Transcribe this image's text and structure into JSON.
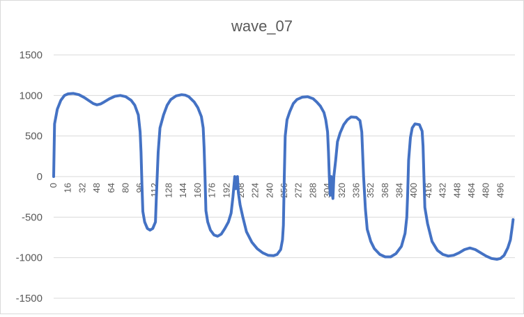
{
  "chart_data": {
    "type": "line",
    "title": "wave_07",
    "xlabel": "",
    "ylabel": "",
    "ylim": [
      -1500,
      1500
    ],
    "xlim": [
      0,
      512
    ],
    "yticks": [
      1500,
      1000,
      500,
      0,
      -500,
      -1000,
      -1500
    ],
    "xticks": [
      0,
      16,
      32,
      48,
      64,
      80,
      96,
      112,
      128,
      144,
      160,
      176,
      192,
      208,
      224,
      240,
      256,
      272,
      288,
      304,
      320,
      336,
      352,
      368,
      384,
      400,
      416,
      432,
      448,
      464,
      480,
      496
    ],
    "grid": "horizontal",
    "legend": "none",
    "series": [
      {
        "color": "#4472c4",
        "points": [
          [
            0,
            0
          ],
          [
            1,
            650
          ],
          [
            4,
            830
          ],
          [
            8,
            940
          ],
          [
            12,
            1000
          ],
          [
            16,
            1020
          ],
          [
            22,
            1025
          ],
          [
            28,
            1010
          ],
          [
            34,
            975
          ],
          [
            40,
            930
          ],
          [
            44,
            900
          ],
          [
            48,
            885
          ],
          [
            52,
            895
          ],
          [
            56,
            920
          ],
          [
            62,
            960
          ],
          [
            68,
            990
          ],
          [
            74,
            1000
          ],
          [
            80,
            985
          ],
          [
            86,
            940
          ],
          [
            90,
            880
          ],
          [
            94,
            760
          ],
          [
            96,
            550
          ],
          [
            97,
            300
          ],
          [
            98,
            -100
          ],
          [
            99,
            -430
          ],
          [
            101,
            -560
          ],
          [
            104,
            -640
          ],
          [
            107,
            -660
          ],
          [
            110,
            -640
          ],
          [
            113,
            -560
          ],
          [
            114,
            -250
          ],
          [
            116,
            300
          ],
          [
            118,
            600
          ],
          [
            122,
            760
          ],
          [
            126,
            880
          ],
          [
            130,
            950
          ],
          [
            136,
            995
          ],
          [
            142,
            1010
          ],
          [
            146,
            1005
          ],
          [
            150,
            985
          ],
          [
            156,
            920
          ],
          [
            160,
            850
          ],
          [
            164,
            740
          ],
          [
            166,
            600
          ],
          [
            167,
            360
          ],
          [
            168,
            0
          ],
          [
            169,
            -420
          ],
          [
            171,
            -560
          ],
          [
            174,
            -660
          ],
          [
            178,
            -720
          ],
          [
            182,
            -735
          ],
          [
            186,
            -710
          ],
          [
            190,
            -640
          ],
          [
            194,
            -560
          ],
          [
            197,
            -450
          ],
          [
            199,
            -250
          ],
          [
            201,
            0
          ],
          [
            202,
            -150
          ],
          [
            203,
            -60
          ],
          [
            204,
            0
          ],
          [
            205,
            -200
          ],
          [
            207,
            -350
          ],
          [
            210,
            -500
          ],
          [
            214,
            -680
          ],
          [
            220,
            -810
          ],
          [
            226,
            -890
          ],
          [
            232,
            -940
          ],
          [
            238,
            -970
          ],
          [
            244,
            -975
          ],
          [
            248,
            -960
          ],
          [
            252,
            -900
          ],
          [
            254,
            -780
          ],
          [
            255,
            -600
          ],
          [
            256,
            0
          ],
          [
            257,
            500
          ],
          [
            259,
            700
          ],
          [
            262,
            800
          ],
          [
            266,
            900
          ],
          [
            270,
            950
          ],
          [
            276,
            980
          ],
          [
            282,
            985
          ],
          [
            288,
            960
          ],
          [
            292,
            920
          ],
          [
            296,
            870
          ],
          [
            300,
            790
          ],
          [
            302,
            700
          ],
          [
            304,
            550
          ],
          [
            305,
            300
          ],
          [
            306,
            0
          ],
          [
            307,
            -230
          ],
          [
            308,
            0
          ],
          [
            309,
            -200
          ],
          [
            310,
            -270
          ],
          [
            311,
            0
          ],
          [
            313,
            200
          ],
          [
            315,
            430
          ],
          [
            318,
            540
          ],
          [
            322,
            640
          ],
          [
            326,
            700
          ],
          [
            330,
            735
          ],
          [
            336,
            730
          ],
          [
            340,
            690
          ],
          [
            342,
            550
          ],
          [
            344,
            0
          ],
          [
            346,
            -400
          ],
          [
            348,
            -650
          ],
          [
            352,
            -800
          ],
          [
            356,
            -890
          ],
          [
            362,
            -960
          ],
          [
            368,
            -990
          ],
          [
            374,
            -990
          ],
          [
            380,
            -950
          ],
          [
            386,
            -860
          ],
          [
            390,
            -700
          ],
          [
            392,
            -500
          ],
          [
            393,
            -200
          ],
          [
            394,
            200
          ],
          [
            396,
            480
          ],
          [
            398,
            600
          ],
          [
            401,
            650
          ],
          [
            406,
            640
          ],
          [
            409,
            560
          ],
          [
            410,
            380
          ],
          [
            411,
            0
          ],
          [
            412,
            -380
          ],
          [
            415,
            -580
          ],
          [
            420,
            -800
          ],
          [
            426,
            -910
          ],
          [
            432,
            -960
          ],
          [
            438,
            -980
          ],
          [
            444,
            -970
          ],
          [
            450,
            -940
          ],
          [
            456,
            -900
          ],
          [
            462,
            -880
          ],
          [
            468,
            -900
          ],
          [
            474,
            -940
          ],
          [
            480,
            -980
          ],
          [
            486,
            -1010
          ],
          [
            492,
            -1020
          ],
          [
            496,
            -1010
          ],
          [
            500,
            -970
          ],
          [
            504,
            -880
          ],
          [
            507,
            -780
          ],
          [
            509,
            -620
          ],
          [
            510,
            -530
          ]
        ]
      }
    ]
  }
}
